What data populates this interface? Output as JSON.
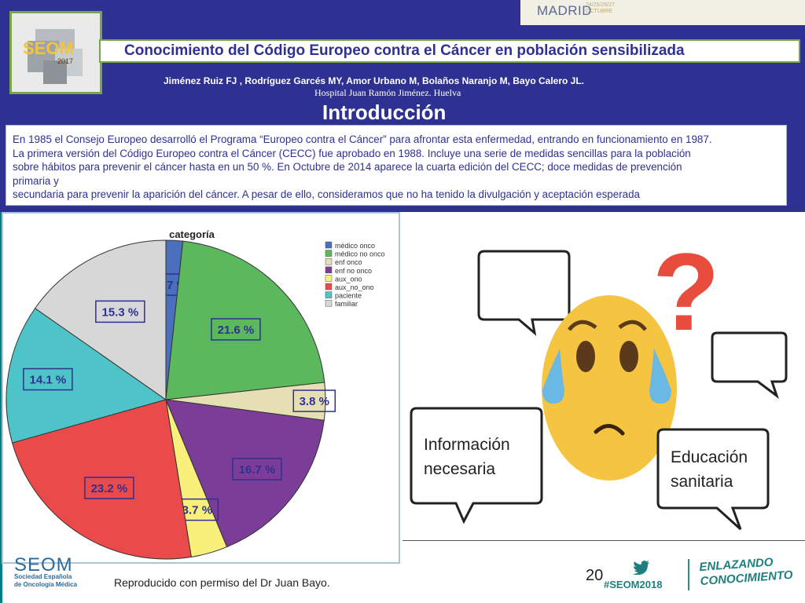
{
  "header": {
    "madrid": "MADRID",
    "madrid_dates": "24/25/26/27 OCTUBRE",
    "title": "Conocimiento del Código Europeo contra el Cáncer en población sensibilizada",
    "authors": "Jiménez  Ruiz FJ , Rodríguez Garcés MY, Amor Urbano M, Bolaños Naranjo M, Bayo Calero JL.",
    "hospital": "Hospital Juan Ramón Jiménez. Huelva",
    "section_title": "Introducción",
    "logo_text": "SEOM",
    "logo_year": "2017"
  },
  "intro": {
    "lines": [
      "En 1985 el Consejo Europeo desarrolló el Programa “Europeo contra el Cáncer” para afrontar esta enfermedad, entrando en funcionamiento en 1987.",
      "La primera versión del Código Europeo contra el Cáncer (CECC) fue aprobado en 1988. Incluye una serie de medidas sencillas para la población",
      "sobre hábitos para prevenir el cáncer hasta en un 50 %. En Octubre de 2014 aparece la cuarta edición del CECC; doce medidas de prevención",
      "primaria y",
      "secundaria para prevenir la aparición del cáncer. A pesar de ello, consideramos que no ha tenido la divulgación y aceptación esperada"
    ]
  },
  "chart_data": {
    "type": "pie",
    "title": "categoría",
    "categories": [
      "médico onco",
      "médico no onco",
      "enf onco",
      "enf no onco",
      "aux_ono",
      "aux_no_ono",
      "paciente",
      "familiar"
    ],
    "values": [
      1.7,
      21.6,
      3.8,
      16.7,
      3.7,
      23.2,
      14.1,
      15.3
    ],
    "labels": [
      "1.7 %",
      "21.6 %",
      "3.8 %",
      "16.7 %",
      "3.7 %",
      "23.2 %",
      "14.1 %",
      "15.3 %"
    ],
    "colors": [
      "#4a6fbd",
      "#5cb85c",
      "#e6dfb4",
      "#7b3d98",
      "#f8f07a",
      "#ea4a4a",
      "#4ec4c8",
      "#d7d7d7"
    ],
    "legend_position": "top-right"
  },
  "illustration": {
    "bubble_left": "Información\nnecesaria",
    "bubble_right": "Educación\nsanitaria",
    "question_mark": "?"
  },
  "footer": {
    "credit": "Reproducido con permiso del Dr Juan Bayo.",
    "seom": "SEOM",
    "seom_sub": "Sociedad Española\nde Oncología Médica",
    "page_number": "20",
    "hashtag": "#SEOM2018",
    "enlazando": "ENLAZANDO\nCONOCIMIENTO"
  }
}
